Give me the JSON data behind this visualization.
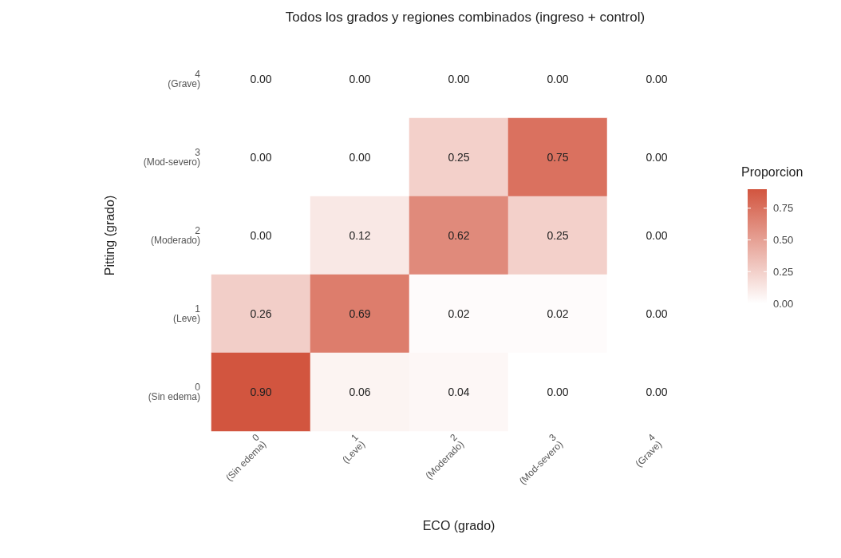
{
  "chart_data": {
    "type": "heatmap",
    "title": "Todos los grados y regiones combinados (ingreso + control)",
    "xlabel": "ECO (grado)",
    "ylabel": "Pitting (grado)",
    "clabel": "Proporcion",
    "categories": [
      "0\n(Sin edema)",
      "1\n(Leve)",
      "2\n(Moderado)",
      "3\n(Mod-severo)",
      "4\n(Grave)"
    ],
    "y_categories": [
      "4\n(Grave)",
      "3\n(Mod-severo)",
      "2\n(Moderado)",
      "1\n(Leve)",
      "0\n(Sin edema)"
    ],
    "cells": [
      [
        0,
        0,
        0,
        0,
        0
      ],
      [
        0,
        0,
        0.25,
        0.75,
        0
      ],
      [
        0,
        0.12,
        0.62,
        0.25,
        0
      ],
      [
        0.26,
        0.69,
        0.02,
        0.02,
        0
      ],
      [
        0.9,
        0.06,
        0.04,
        0,
        0
      ]
    ],
    "cell_labels": [
      [
        "0.00",
        "0.00",
        "0.00",
        "0.00",
        "0.00"
      ],
      [
        "0.00",
        "0.00",
        "0.25",
        "0.75",
        "0.00"
      ],
      [
        "0.00",
        "0.12",
        "0.62",
        "0.25",
        "0.00"
      ],
      [
        "0.26",
        "0.69",
        "0.02",
        "0.02",
        "0.00"
      ],
      [
        "0.90",
        "0.06",
        "0.04",
        "0.00",
        "0.00"
      ]
    ],
    "clim": [
      0,
      0.9
    ],
    "cticks": [
      {
        "value": 0,
        "label": "0.00"
      },
      {
        "value": 0.25,
        "label": "0.25"
      },
      {
        "value": 0.5,
        "label": "0.50"
      },
      {
        "value": 0.75,
        "label": "0.75"
      }
    ]
  }
}
